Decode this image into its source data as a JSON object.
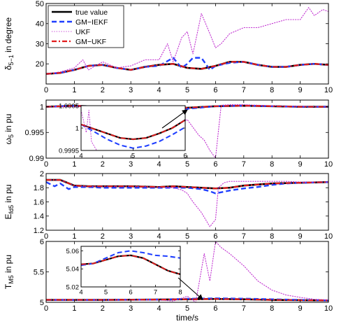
{
  "chart_data": [
    {
      "type": "line",
      "ylabel": "δ5−1 in degree",
      "xlim": [
        0,
        10
      ],
      "ylim": [
        10,
        50
      ],
      "xticks": [
        "0",
        "1",
        "2",
        "3",
        "4",
        "5",
        "6",
        "7",
        "8",
        "9",
        "10"
      ],
      "yticks": [
        "20",
        "30",
        "40",
        "50"
      ],
      "legend": {
        "placement": "top-left",
        "entries": [
          "true value",
          "GM−IEKF",
          "UKF",
          "GM−UKF"
        ]
      },
      "series": [
        {
          "name": "true value",
          "color": "#000000",
          "style": "solid",
          "x": [
            0,
            0.5,
            1,
            1.5,
            2,
            2.5,
            3,
            3.5,
            4,
            4.5,
            5,
            5.5,
            6,
            6.5,
            7,
            7.5,
            8,
            8.5,
            9,
            9.5,
            10
          ],
          "y": [
            15,
            15.5,
            17,
            19,
            19.5,
            18,
            17,
            18.5,
            19.5,
            20,
            18,
            17.5,
            19,
            21,
            21,
            19.5,
            18.5,
            18.5,
            19.5,
            20,
            19.5
          ]
        },
        {
          "name": "GM−IEKF",
          "color": "#1f3fff",
          "style": "dashed",
          "x": [
            0,
            0.5,
            1,
            1.5,
            2,
            2.5,
            3,
            3.5,
            4,
            4.5,
            4.8,
            5,
            5.2,
            5.5,
            5.8,
            6,
            6.5,
            7,
            7.5,
            8,
            8.5,
            9,
            9.5,
            10
          ],
          "y": [
            15,
            15.5,
            17,
            19,
            19.5,
            18,
            17,
            18.5,
            19,
            23,
            18,
            20,
            23,
            23,
            17,
            19,
            20.5,
            21,
            19.5,
            18.5,
            18.5,
            19.5,
            20,
            19.5
          ]
        },
        {
          "name": "UKF",
          "color": "#c030d0",
          "style": "dotted",
          "x": [
            0,
            0.5,
            1,
            1.3,
            1.5,
            2,
            2.5,
            3,
            3.5,
            4,
            4.3,
            4.5,
            4.8,
            5,
            5.2,
            5.5,
            5.8,
            6,
            6.2,
            6.5,
            7,
            7.5,
            8,
            8.5,
            9,
            9.3,
            9.5,
            9.8,
            10
          ],
          "y": [
            15,
            16,
            18,
            22,
            17,
            21,
            18,
            19,
            22,
            22,
            30,
            21,
            33,
            36,
            25,
            45,
            35,
            28,
            30,
            35,
            38,
            38,
            40,
            42,
            42,
            48,
            44,
            47,
            46
          ]
        },
        {
          "name": "GM−UKF",
          "color": "#e11b1b",
          "style": "dashdot",
          "x": [
            0,
            0.5,
            1,
            1.5,
            2,
            2.5,
            3,
            3.5,
            4,
            4.5,
            5,
            5.5,
            6,
            6.5,
            7,
            7.5,
            8,
            8.5,
            9,
            9.5,
            10
          ],
          "y": [
            15,
            15.5,
            17,
            19,
            19.5,
            18,
            17,
            18.5,
            19.5,
            20,
            18,
            17.5,
            19,
            21,
            21,
            19.5,
            18.5,
            18.5,
            19.5,
            20,
            19.5
          ]
        }
      ]
    },
    {
      "type": "line",
      "ylabel": "ω5 in pu",
      "xlim": [
        0,
        10
      ],
      "ylim": [
        0.99,
        1.0013
      ],
      "xticks": [
        "0",
        "1",
        "2",
        "3",
        "4",
        "5",
        "6",
        "7",
        "8",
        "9",
        "10"
      ],
      "yticks": [
        "0.99",
        "0.995",
        "1"
      ],
      "series": [
        {
          "name": "true value",
          "color": "#000000",
          "style": "solid",
          "x": [
            0,
            1,
            2,
            3,
            4,
            5,
            6,
            7,
            8,
            9,
            10
          ],
          "y": [
            1,
            1.0002,
            1,
            1,
            0.9999,
            0.9998,
            1.0001,
            1.0002,
            1.0001,
            1,
            1
          ]
        },
        {
          "name": "GM−IEKF",
          "color": "#1f3fff",
          "style": "dashed",
          "x": [
            0,
            1,
            2,
            3,
            4,
            5,
            6,
            7,
            8,
            9,
            10
          ],
          "y": [
            1,
            1.0002,
            1,
            1,
            0.9999,
            0.9996,
            1.0001,
            1.0002,
            1.0001,
            1,
            1
          ]
        },
        {
          "name": "UKF",
          "color": "#c030d0",
          "style": "dotted",
          "x": [
            0,
            0.5,
            1,
            2,
            3,
            4,
            4.2,
            4.4,
            4.6,
            4.8,
            5,
            5.2,
            5.4,
            5.6,
            5.8,
            6,
            6.2,
            6.5,
            7,
            7.5,
            8,
            8.5,
            9,
            9.5,
            10
          ],
          "y": [
            1,
            1,
            1,
            1,
            1,
            0.9995,
            0.995,
            0.998,
            0.9985,
            0.997,
            0.9975,
            0.996,
            0.9945,
            0.9935,
            0.9915,
            0.99,
            1.0003,
            1.0004,
            1.0004,
            1.0003,
            1.0002,
            1.0001,
            1.0001,
            1,
            1
          ]
        },
        {
          "name": "GM−UKF",
          "color": "#e11b1b",
          "style": "dashdot",
          "x": [
            0,
            1,
            2,
            3,
            4,
            5,
            6,
            7,
            8,
            9,
            10
          ],
          "y": [
            1,
            1.0002,
            1,
            1,
            0.9999,
            0.9998,
            1.0001,
            1.0002,
            1.0001,
            1,
            1
          ]
        }
      ],
      "inset": {
        "xlim": [
          4,
          6
        ],
        "ylim": [
          0.9995,
          1.0005
        ],
        "xticks": [
          "4",
          "5",
          "6"
        ],
        "yticks": [
          "0.9995",
          "1",
          "1.0005"
        ],
        "series": [
          {
            "name": "true value",
            "color": "#000000",
            "style": "solid",
            "x": [
              4,
              4.25,
              4.5,
              4.75,
              5,
              5.25,
              5.5,
              5.75,
              6
            ],
            "y": [
              1.00008,
              0.99998,
              0.99988,
              0.99978,
              0.99975,
              0.99978,
              0.99988,
              1.0,
              1.00018
            ]
          },
          {
            "name": "GM−IEKF",
            "color": "#1f3fff",
            "style": "dashed",
            "x": [
              4,
              4.25,
              4.5,
              4.75,
              5,
              5.25,
              5.5,
              5.75,
              6
            ],
            "y": [
              1.00008,
              0.99992,
              0.99975,
              0.99962,
              0.99955,
              0.9996,
              0.9997,
              0.99985,
              1.00002
            ]
          },
          {
            "name": "UKF",
            "color": "#c030d0",
            "style": "dotted",
            "x": [
              4,
              4.1,
              4.15,
              4.2,
              4.3
            ],
            "y": [
              1.0004,
              0.9999,
              1.0004,
              0.9997,
              0.9995
            ]
          },
          {
            "name": "GM−UKF",
            "color": "#e11b1b",
            "style": "dashdot",
            "x": [
              4,
              4.25,
              4.5,
              4.75,
              5,
              5.25,
              5.5,
              5.75,
              6
            ],
            "y": [
              1.00008,
              0.99998,
              0.99988,
              0.99978,
              0.99975,
              0.99978,
              0.99988,
              1.0,
              1.00018
            ]
          }
        ]
      }
    },
    {
      "type": "line",
      "ylabel": "Efd5 in pu",
      "xlim": [
        0,
        10
      ],
      "ylim": [
        1.2,
        2.0
      ],
      "xticks": [
        "0",
        "1",
        "2",
        "3",
        "4",
        "5",
        "6",
        "7",
        "8",
        "9",
        "10"
      ],
      "yticks": [
        "1.2",
        "1.4",
        "1.6",
        "1.8",
        "2"
      ],
      "series": [
        {
          "name": "true value",
          "color": "#000000",
          "style": "solid",
          "x": [
            0,
            0.5,
            1,
            1.5,
            2,
            3,
            4,
            4.5,
            5,
            5.5,
            6,
            6.5,
            7,
            8,
            9,
            10
          ],
          "y": [
            1.91,
            1.91,
            1.83,
            1.82,
            1.82,
            1.82,
            1.81,
            1.82,
            1.81,
            1.8,
            1.79,
            1.8,
            1.83,
            1.86,
            1.87,
            1.88
          ]
        },
        {
          "name": "GM−IEKF",
          "color": "#1f3fff",
          "style": "dashed",
          "x": [
            0,
            0.3,
            0.5,
            0.8,
            1,
            1.5,
            2,
            3,
            4,
            4.5,
            5,
            5.5,
            5.8,
            6,
            6.5,
            7,
            7.5,
            8,
            8.5,
            9,
            10
          ],
          "y": [
            1.88,
            1.82,
            1.86,
            1.78,
            1.81,
            1.81,
            1.8,
            1.8,
            1.8,
            1.8,
            1.8,
            1.78,
            1.75,
            1.72,
            1.76,
            1.79,
            1.81,
            1.84,
            1.86,
            1.87,
            1.88
          ]
        },
        {
          "name": "UKF",
          "color": "#c030d0",
          "style": "dotted",
          "x": [
            0,
            0.5,
            1,
            1.5,
            2,
            3,
            4,
            4.5,
            4.8,
            5,
            5.2,
            5.5,
            5.8,
            6,
            6.1,
            6.3,
            6.5,
            7,
            7.5,
            8,
            8.5,
            9,
            10
          ],
          "y": [
            1.91,
            1.91,
            1.83,
            1.82,
            1.82,
            1.82,
            1.81,
            1.8,
            1.77,
            1.72,
            1.6,
            1.45,
            1.25,
            1.35,
            1.8,
            1.87,
            1.89,
            1.89,
            1.89,
            1.89,
            1.89,
            1.88,
            1.88
          ]
        },
        {
          "name": "GM−UKF",
          "color": "#e11b1b",
          "style": "dashdot",
          "x": [
            0,
            0.5,
            1,
            1.5,
            2,
            3,
            4,
            4.5,
            5,
            5.5,
            6,
            6.5,
            7,
            8,
            9,
            10
          ],
          "y": [
            1.91,
            1.91,
            1.83,
            1.82,
            1.82,
            1.82,
            1.81,
            1.82,
            1.81,
            1.8,
            1.79,
            1.8,
            1.83,
            1.86,
            1.87,
            1.88
          ]
        }
      ]
    },
    {
      "type": "line",
      "ylabel": "TM5 in pu",
      "xlabel": "time/s",
      "xlim": [
        0,
        10
      ],
      "ylim": [
        5,
        6
      ],
      "xticks": [
        "0",
        "1",
        "2",
        "3",
        "4",
        "5",
        "6",
        "7",
        "8",
        "9",
        "10"
      ],
      "yticks": [
        "5",
        "5.5",
        "6"
      ],
      "series": [
        {
          "name": "true value",
          "color": "#000000",
          "style": "solid",
          "x": [
            0,
            2,
            4,
            5,
            6,
            7,
            8,
            9,
            10
          ],
          "y": [
            5.04,
            5.04,
            5.045,
            5.05,
            5.055,
            5.05,
            5.04,
            5.035,
            5.03
          ]
        },
        {
          "name": "GM−IEKF",
          "color": "#1f3fff",
          "style": "dashed",
          "x": [
            0,
            2,
            4,
            5,
            6,
            7,
            8,
            9,
            10
          ],
          "y": [
            5.04,
            5.04,
            5.045,
            5.058,
            5.065,
            5.06,
            5.05,
            5.04,
            5.03
          ]
        },
        {
          "name": "UKF",
          "color": "#c030d0",
          "style": "dotted",
          "x": [
            0,
            2,
            4,
            4.5,
            5,
            5.3,
            5.6,
            5.8,
            6,
            6.2,
            6.5,
            7,
            7.5,
            8,
            8.5,
            9,
            9.5,
            10
          ],
          "y": [
            5.04,
            5.04,
            5.04,
            5.02,
            5.1,
            5.0,
            5.8,
            5.35,
            6.0,
            5.9,
            5.8,
            5.6,
            5.35,
            5.2,
            5.12,
            5.08,
            5.05,
            5.04
          ]
        },
        {
          "name": "GM−UKF",
          "color": "#e11b1b",
          "style": "dashdot",
          "x": [
            0,
            2,
            4,
            5,
            6,
            7,
            8,
            9,
            10
          ],
          "y": [
            5.04,
            5.04,
            5.045,
            5.05,
            5.055,
            5.05,
            5.04,
            5.035,
            5.03
          ]
        }
      ],
      "inset": {
        "xlim": [
          4,
          8
        ],
        "ylim": [
          5.02,
          5.065
        ],
        "xticks": [
          "4",
          "5",
          "6",
          "7",
          "8"
        ],
        "yticks": [
          "5.02",
          "5.04",
          "5.06"
        ],
        "series": [
          {
            "name": "true value",
            "color": "#000000",
            "style": "solid",
            "x": [
              4,
              4.5,
              5,
              5.5,
              6,
              6.5,
              7,
              7.5,
              8
            ],
            "y": [
              5.045,
              5.046,
              5.05,
              5.054,
              5.055,
              5.052,
              5.045,
              5.038,
              5.034
            ]
          },
          {
            "name": "GM−IEKF",
            "color": "#1f3fff",
            "style": "dashed",
            "x": [
              4,
              4.5,
              5,
              5.5,
              6,
              6.5,
              7,
              7.5,
              8
            ],
            "y": [
              5.044,
              5.046,
              5.052,
              5.058,
              5.06,
              5.058,
              5.055,
              5.054,
              5.052
            ]
          },
          {
            "name": "GM−UKF",
            "color": "#e11b1b",
            "style": "dashdot",
            "x": [
              4,
              4.5,
              5,
              5.5,
              6,
              6.5,
              7,
              7.5,
              8
            ],
            "y": [
              5.045,
              5.046,
              5.05,
              5.054,
              5.055,
              5.052,
              5.045,
              5.038,
              5.034
            ]
          }
        ]
      }
    }
  ]
}
